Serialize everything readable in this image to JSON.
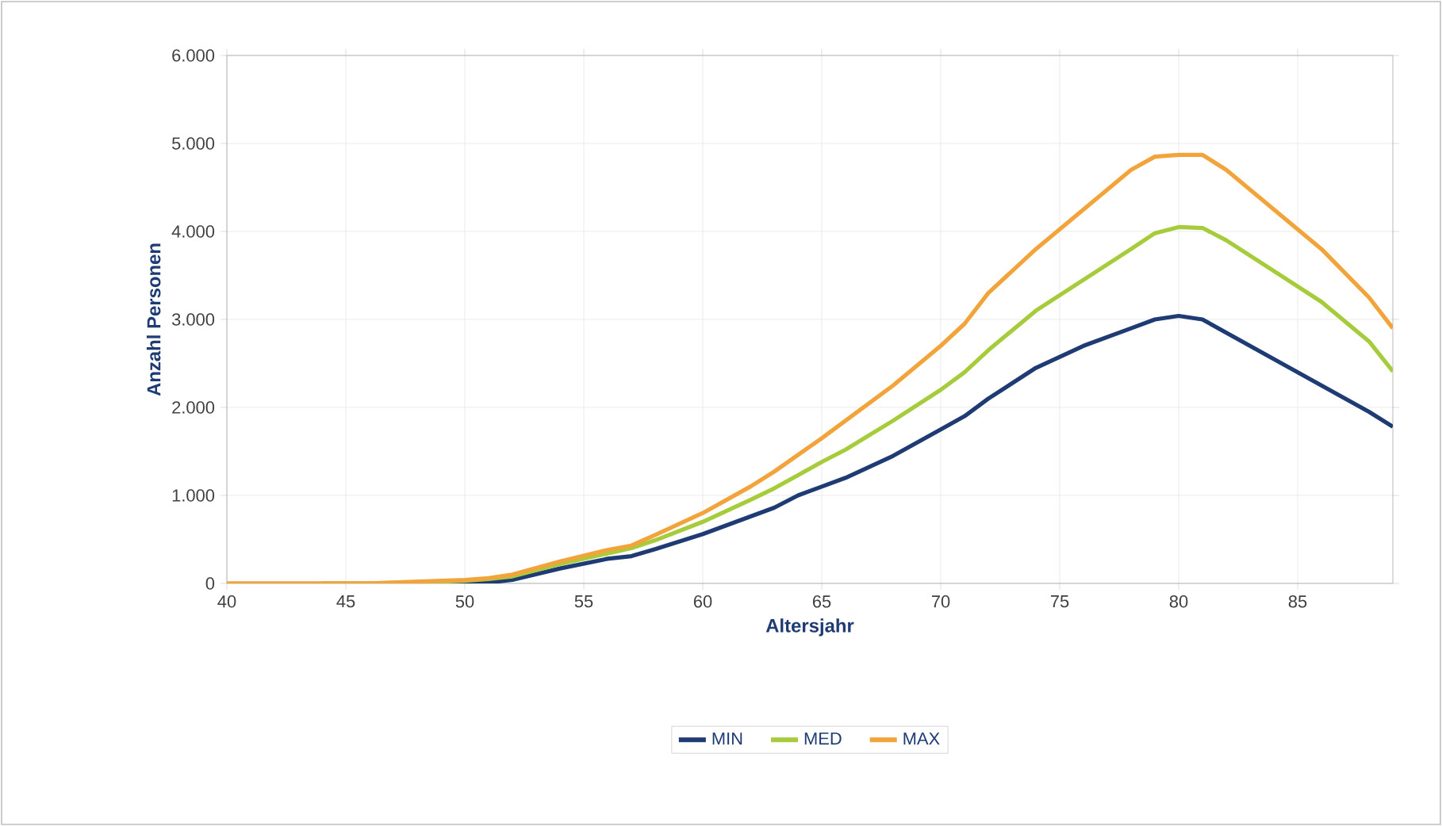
{
  "chart_data": {
    "type": "line",
    "xlabel": "Altersjahr",
    "ylabel": "Anzahl Personen",
    "x": [
      40,
      42,
      44,
      46,
      48,
      50,
      51,
      52,
      54,
      56,
      57,
      58,
      60,
      62,
      63,
      64,
      65,
      66,
      68,
      70,
      71,
      72,
      74,
      76,
      78,
      79,
      80,
      81,
      82,
      84,
      86,
      88,
      89
    ],
    "series": [
      {
        "name": "MIN",
        "color": "#1f3b73",
        "values": [
          null,
          null,
          null,
          null,
          0,
          0,
          10,
          40,
          170,
          280,
          310,
          390,
          560,
          760,
          860,
          1000,
          1100,
          1200,
          1450,
          1750,
          1900,
          2100,
          2450,
          2700,
          2900,
          3000,
          3040,
          3000,
          2850,
          2550,
          2250,
          1950,
          1780
        ]
      },
      {
        "name": "MED",
        "color": "#a6cc3c",
        "values": [
          null,
          null,
          0,
          0,
          10,
          30,
          50,
          80,
          220,
          340,
          400,
          490,
          700,
          950,
          1080,
          1230,
          1380,
          1520,
          1850,
          2200,
          2400,
          2650,
          3100,
          3450,
          3800,
          3980,
          4050,
          4040,
          3900,
          3550,
          3200,
          2750,
          2410
        ]
      },
      {
        "name": "MAX",
        "color": "#f2a33a",
        "values": [
          0,
          0,
          0,
          0,
          20,
          40,
          60,
          100,
          250,
          380,
          430,
          550,
          800,
          1100,
          1270,
          1460,
          1650,
          1850,
          2250,
          2700,
          2950,
          3300,
          3800,
          4250,
          4700,
          4850,
          4870,
          4870,
          4700,
          4250,
          3800,
          3250,
          2900
        ]
      }
    ],
    "xlim": [
      40,
      89
    ],
    "xticks": [
      40,
      45,
      50,
      55,
      60,
      65,
      70,
      75,
      80,
      85
    ],
    "ylim": [
      0,
      6000
    ],
    "yticks": [
      0,
      {
        "value": 1000,
        "label": "1.000"
      },
      {
        "value": 2000,
        "label": "2.000"
      },
      {
        "value": 3000,
        "label": "3.000"
      },
      {
        "value": 4000,
        "label": "4.000"
      },
      {
        "value": 5000,
        "label": "5.000"
      },
      {
        "value": 6000,
        "label": "6.000"
      }
    ],
    "grid": true,
    "legend": "bottom",
    "marker": "none",
    "line_style": "solid"
  }
}
